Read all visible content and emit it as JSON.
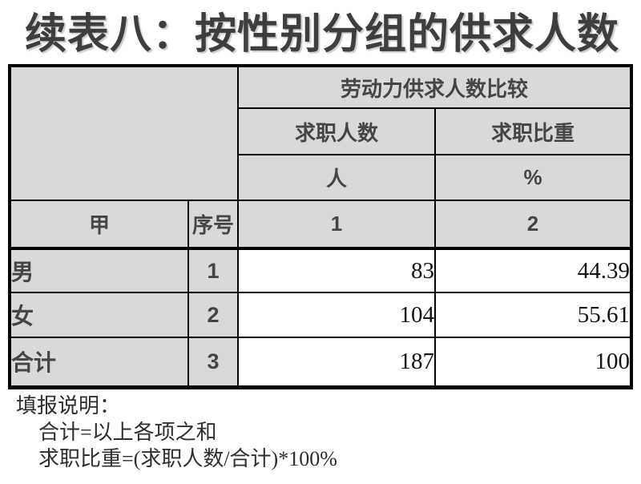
{
  "title": "续表八：按性别分组的供求人数",
  "table": {
    "group_header": "劳动力供求人数比较",
    "col_headers": [
      "求职人数",
      "求职比重"
    ],
    "unit_row": [
      "人",
      "%"
    ],
    "stub_header": "甲",
    "serial_header": "序号",
    "col_numbers": [
      "1",
      "2"
    ],
    "rows": [
      {
        "label": "男",
        "serial": "1",
        "count": "83",
        "share": "44.39"
      },
      {
        "label": "女",
        "serial": "2",
        "count": "104",
        "share": "55.61"
      },
      {
        "label": "合计",
        "serial": "3",
        "count": "187",
        "share": "100"
      }
    ]
  },
  "notes": {
    "heading": "填报说明：",
    "lines": [
      "合计=以上各项之和",
      "求职比重=(求职人数/合计)*100%"
    ]
  },
  "colors": {
    "header_cell_bg": "#d9d9d9",
    "border": "#000000",
    "header_text": "#454545",
    "title_text": "#3e3e3e",
    "data_text": "#141414"
  }
}
